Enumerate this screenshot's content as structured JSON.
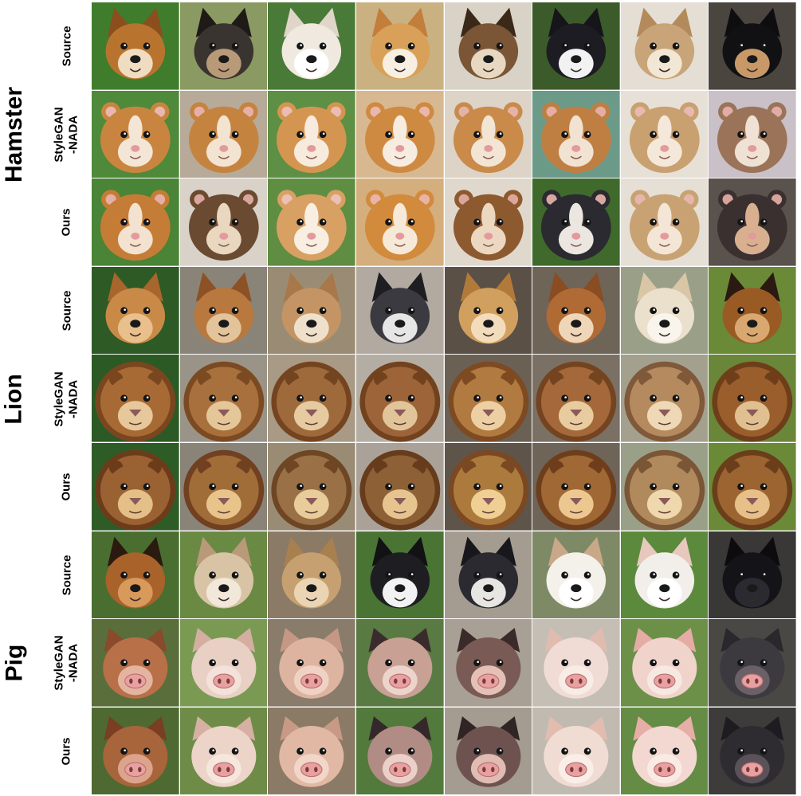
{
  "groups": [
    {
      "label": "Hamster",
      "rows": [
        {
          "label": "Source",
          "kind": "dog",
          "cells": [
            {
              "subject": "dog",
              "bg": "#3f7d2c",
              "fur": "#b8742f",
              "light": "#f0dcc0",
              "ear": "#8a4f1c"
            },
            {
              "subject": "dog",
              "bg": "#8a9a62",
              "fur": "#3a3430",
              "light": "#b89a78",
              "ear": "#1e1a18"
            },
            {
              "subject": "dog",
              "bg": "#4a7a38",
              "fur": "#efe9df",
              "light": "#ffffff",
              "ear": "#e0d6c8"
            },
            {
              "subject": "dog",
              "bg": "#c9b182",
              "fur": "#d8a058",
              "light": "#f7efe2",
              "ear": "#c27e3a"
            },
            {
              "subject": "dog",
              "bg": "#d9d2c6",
              "fur": "#7a5636",
              "light": "#e8d8c2",
              "ear": "#3a2818"
            },
            {
              "subject": "dog",
              "bg": "#3c5b2a",
              "fur": "#1c1c22",
              "light": "#f2f2f2",
              "ear": "#15151a"
            },
            {
              "subject": "dog",
              "bg": "#e4ded4",
              "fur": "#c8a478",
              "light": "#f2e6d4",
              "ear": "#b48a5c"
            },
            {
              "subject": "dog",
              "bg": "#4b4540",
              "fur": "#111114",
              "light": "#c89868",
              "ear": "#0e0e10"
            }
          ]
        },
        {
          "label": "StyleGAN\n-NADA",
          "kind": "hamster",
          "cells": [
            {
              "subject": "hamster",
              "bg": "#4e8a3a",
              "fur": "#c9853f",
              "light": "#f4e6d6",
              "ear": "#e8b8b0"
            },
            {
              "subject": "hamster",
              "bg": "#b8aa98",
              "fur": "#c48440",
              "light": "#f3e3d1",
              "ear": "#e6b0a8"
            },
            {
              "subject": "hamster",
              "bg": "#5d8f44",
              "fur": "#d49550",
              "light": "#f6ebdd",
              "ear": "#ebbcb3"
            },
            {
              "subject": "hamster",
              "bg": "#d8b890",
              "fur": "#cf8a42",
              "light": "#f7ece0",
              "ear": "#e9b7ad"
            },
            {
              "subject": "hamster",
              "bg": "#ddd3c6",
              "fur": "#c98a4a",
              "light": "#f3e5d4",
              "ear": "#e5b2a9"
            },
            {
              "subject": "hamster",
              "bg": "#6c9a88",
              "fur": "#c07f42",
              "light": "#f1e2d2",
              "ear": "#e4aea6"
            },
            {
              "subject": "hamster",
              "bg": "#e7e0d6",
              "fur": "#c9a070",
              "light": "#f4e8da",
              "ear": "#e8b9b0"
            },
            {
              "subject": "hamster",
              "bg": "#c9c0c8",
              "fur": "#9a7358",
              "light": "#efe1d3",
              "ear": "#e1aca5"
            }
          ]
        },
        {
          "label": "Ours",
          "kind": "hamster",
          "cells": [
            {
              "subject": "hamster",
              "bg": "#4a8436",
              "fur": "#c57c36",
              "light": "#f2e2cf",
              "ear": "#e4b0a6"
            },
            {
              "subject": "hamster",
              "bg": "#d8d2c8",
              "fur": "#6a4a30",
              "light": "#e9d7bf",
              "ear": "#d9a59c"
            },
            {
              "subject": "hamster",
              "bg": "#5f8e43",
              "fur": "#d8a062",
              "light": "#f8eee2",
              "ear": "#ecc0b6"
            },
            {
              "subject": "hamster",
              "bg": "#d4ae7c",
              "fur": "#d28a3c",
              "light": "#f6e9d8",
              "ear": "#e8b4a8"
            },
            {
              "subject": "hamster",
              "bg": "#e0d8cc",
              "fur": "#8d5a30",
              "light": "#ecd8c0",
              "ear": "#dca69b"
            },
            {
              "subject": "hamster",
              "bg": "#3f6a2c",
              "fur": "#2a2a30",
              "light": "#ece6e0",
              "ear": "#d8a8a0"
            },
            {
              "subject": "hamster",
              "bg": "#e6dfd5",
              "fur": "#c9a274",
              "light": "#f3e6d6",
              "ear": "#e6b6ad"
            },
            {
              "subject": "hamster",
              "bg": "#5a524c",
              "fur": "#3a3030",
              "light": "#d8b090",
              "ear": "#d6a49c"
            }
          ]
        }
      ]
    },
    {
      "label": "Lion",
      "rows": [
        {
          "label": "Source",
          "kind": "dog",
          "cells": [
            {
              "subject": "dog",
              "bg": "#2e5a26",
              "fur": "#c98a48",
              "light": "#e9c08c",
              "ear": "#a8662c"
            },
            {
              "subject": "dog",
              "bg": "#8a8478",
              "fur": "#b9783e",
              "light": "#e2c39a",
              "ear": "#8d5126"
            },
            {
              "subject": "dog",
              "bg": "#9a8c74",
              "fur": "#c49464",
              "light": "#efe0cc",
              "ear": "#a8784a"
            },
            {
              "subject": "dog",
              "bg": "#b2aaa0",
              "fur": "#3a3a40",
              "light": "#e6e6e6",
              "ear": "#1e1e22"
            },
            {
              "subject": "dog",
              "bg": "#5a5046",
              "fur": "#d2a05e",
              "light": "#f2dcbc",
              "ear": "#b27a3a"
            },
            {
              "subject": "dog",
              "bg": "#6e6458",
              "fur": "#b06a34",
              "light": "#efd6b8",
              "ear": "#8a4c22"
            },
            {
              "subject": "dog",
              "bg": "#9aa088",
              "fur": "#ebe0cc",
              "light": "#faf5ec",
              "ear": "#d8c6a6"
            },
            {
              "subject": "dog",
              "bg": "#6a8a38",
              "fur": "#9a5a24",
              "light": "#d8a870",
              "ear": "#2a1a12"
            }
          ]
        },
        {
          "label": "StyleGAN\n-NADA",
          "kind": "lion",
          "cells": [
            {
              "subject": "lion",
              "bg": "#2c5a24",
              "fur": "#a86a34",
              "light": "#e6c89a",
              "ear": "#7a4620"
            },
            {
              "subject": "lion",
              "bg": "#9a9488",
              "fur": "#a8703c",
              "light": "#e4c698",
              "ear": "#7c4a22"
            },
            {
              "subject": "lion",
              "bg": "#a89a84",
              "fur": "#9e6a3c",
              "light": "#e6caa0",
              "ear": "#744420"
            },
            {
              "subject": "lion",
              "bg": "#b4ada4",
              "fur": "#9c6438",
              "light": "#e2c49a",
              "ear": "#72421e"
            },
            {
              "subject": "lion",
              "bg": "#6a6054",
              "fur": "#b07a40",
              "light": "#ecd0a4",
              "ear": "#7e4a22"
            },
            {
              "subject": "lion",
              "bg": "#7a7064",
              "fur": "#a4683a",
              "light": "#e8cca0",
              "ear": "#744420"
            },
            {
              "subject": "lion",
              "bg": "#a4a08e",
              "fur": "#b48a5e",
              "light": "#eed8b6",
              "ear": "#80583a"
            },
            {
              "subject": "lion",
              "bg": "#6a8638",
              "fur": "#9a5e2c",
              "light": "#e0c090",
              "ear": "#6e3e1a"
            }
          ]
        },
        {
          "label": "Ours",
          "kind": "lion",
          "cells": [
            {
              "subject": "lion",
              "bg": "#2e5c26",
              "fur": "#9a6232",
              "light": "#e4c088",
              "ear": "#6c3c1a"
            },
            {
              "subject": "lion",
              "bg": "#8a8478",
              "fur": "#a06c38",
              "light": "#e8c48a",
              "ear": "#704020"
            },
            {
              "subject": "lion",
              "bg": "#9a8c74",
              "fur": "#9a7046",
              "light": "#e8cc9a",
              "ear": "#6e4624"
            },
            {
              "subject": "lion",
              "bg": "#aaa298",
              "fur": "#8e6036",
              "light": "#e6c490",
              "ear": "#663c1c"
            },
            {
              "subject": "lion",
              "bg": "#5e544a",
              "fur": "#ad7a3e",
              "light": "#efcf94",
              "ear": "#7a4822"
            },
            {
              "subject": "lion",
              "bg": "#6e6458",
              "fur": "#a06834",
              "light": "#ecc890",
              "ear": "#6e3e1c"
            },
            {
              "subject": "lion",
              "bg": "#9aa088",
              "fur": "#b08a5c",
              "light": "#f0d8ae",
              "ear": "#7a5636"
            },
            {
              "subject": "lion",
              "bg": "#6a8a38",
              "fur": "#9c6430",
              "light": "#e6c088",
              "ear": "#6a3e1a"
            }
          ]
        }
      ]
    },
    {
      "label": "Pig",
      "rows": [
        {
          "label": "Source",
          "kind": "dog",
          "cells": [
            {
              "subject": "dog",
              "bg": "#4a6e30",
              "fur": "#a8622a",
              "light": "#d89a5a",
              "ear": "#2a1a10"
            },
            {
              "subject": "dog",
              "bg": "#6a8a44",
              "fur": "#d8c4a4",
              "light": "#f2e8da",
              "ear": "#b89a78"
            },
            {
              "subject": "dog",
              "bg": "#8a7a66",
              "fur": "#c6a070",
              "light": "#ead4b4",
              "ear": "#a88050"
            },
            {
              "subject": "dog",
              "bg": "#4a7434",
              "fur": "#1e1e22",
              "light": "#f2f2f2",
              "ear": "#121214"
            },
            {
              "subject": "dog",
              "bg": "#a49c90",
              "fur": "#2a2a30",
              "light": "#e8e6e2",
              "ear": "#18181c"
            },
            {
              "subject": "dog",
              "bg": "#7e8a66",
              "fur": "#f4f0ea",
              "light": "#ffffff",
              "ear": "#c8a888"
            },
            {
              "subject": "dog",
              "bg": "#5c8a3c",
              "fur": "#f2eeea",
              "light": "#ffffff",
              "ear": "#e8c8bc"
            },
            {
              "subject": "dog",
              "bg": "#3a3836",
              "fur": "#141418",
              "light": "#2a2a30",
              "ear": "#0c0c0e"
            }
          ]
        },
        {
          "label": "StyleGAN\n-NADA",
          "kind": "pig",
          "cells": [
            {
              "subject": "pig",
              "bg": "#5a6e3c",
              "fur": "#b87048",
              "light": "#e4b4a0",
              "ear": "#8a4a2c"
            },
            {
              "subject": "pig",
              "bg": "#7a9a54",
              "fur": "#e8d0c4",
              "light": "#f4e2da",
              "ear": "#d4aea0"
            },
            {
              "subject": "pig",
              "bg": "#8a7c6a",
              "fur": "#dcb4a0",
              "light": "#f0d2c4",
              "ear": "#c49884"
            },
            {
              "subject": "pig",
              "bg": "#5a7a44",
              "fur": "#c8a094",
              "light": "#ecd4cc",
              "ear": "#3a2c2c"
            },
            {
              "subject": "pig",
              "bg": "#a8a094",
              "fur": "#7a5a54",
              "light": "#e4c0b6",
              "ear": "#3a2a2a"
            },
            {
              "subject": "pig",
              "bg": "#c4beb4",
              "fur": "#f0dcd4",
              "light": "#f8ece6",
              "ear": "#e0bcb0"
            },
            {
              "subject": "pig",
              "bg": "#6c9048",
              "fur": "#f0d4cc",
              "light": "#f8e8e2",
              "ear": "#e4aca4"
            },
            {
              "subject": "pig",
              "bg": "#4a4844",
              "fur": "#3c3a3e",
              "light": "#6a6068",
              "ear": "#2a282c"
            }
          ]
        },
        {
          "label": "Ours",
          "kind": "pig",
          "cells": [
            {
              "subject": "pig",
              "bg": "#4e6a32",
              "fur": "#a8643a",
              "light": "#dca48c",
              "ear": "#7a3e22"
            },
            {
              "subject": "pig",
              "bg": "#6e8c48",
              "fur": "#ecd4c8",
              "light": "#f6e6de",
              "ear": "#d6b0a2"
            },
            {
              "subject": "pig",
              "bg": "#8a7a66",
              "fur": "#e0b8a4",
              "light": "#f2d6c8",
              "ear": "#c89a86"
            },
            {
              "subject": "pig",
              "bg": "#527a3c",
              "fur": "#b08c84",
              "light": "#ead0c8",
              "ear": "#34282a"
            },
            {
              "subject": "pig",
              "bg": "#a49c90",
              "fur": "#6e5250",
              "light": "#e0bcb2",
              "ear": "#302424"
            },
            {
              "subject": "pig",
              "bg": "#c0bab0",
              "fur": "#f0dcd2",
              "light": "#faeee8",
              "ear": "#e2bcae"
            },
            {
              "subject": "pig",
              "bg": "#648c44",
              "fur": "#f2d8d0",
              "light": "#faeae4",
              "ear": "#e6aea6"
            },
            {
              "subject": "pig",
              "bg": "#3e3c3a",
              "fur": "#2e2c30",
              "light": "#5a5258",
              "ear": "#1e1c20"
            }
          ]
        }
      ]
    }
  ]
}
